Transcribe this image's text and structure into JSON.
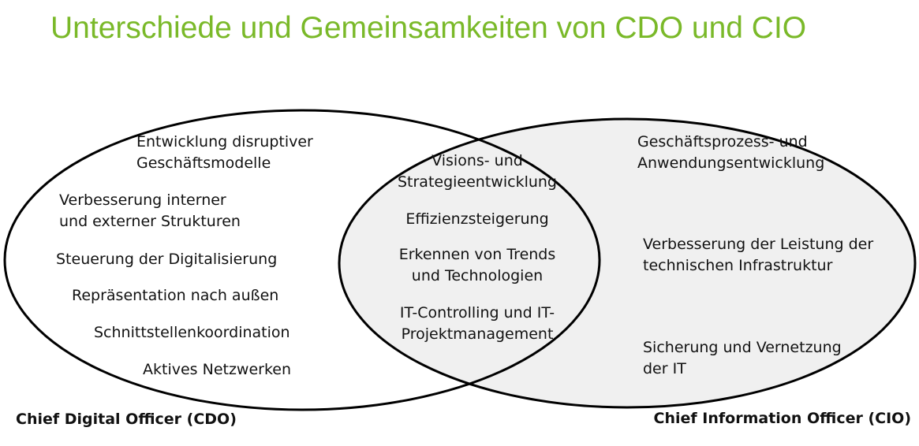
{
  "title": "Unterschiede und Gemeinsamkeiten von CDO und CIO",
  "colors": {
    "title": "#7ab929",
    "circle_fill": "#f0f0f0",
    "outline": "#000000",
    "text": "#111111"
  },
  "cdo": {
    "caption": "Chief Digital Officer (CDO)",
    "items": [
      [
        "Entwicklung disruptiver",
        "Geschäftsmodelle"
      ],
      [
        "Verbesserung interner",
        "und externer Strukturen"
      ],
      [
        "Steuerung der Digitalisierung"
      ],
      [
        "Repräsentation nach außen"
      ],
      [
        "Schnittstellenkoordination"
      ],
      [
        "Aktives Netzwerken"
      ]
    ]
  },
  "shared": {
    "items": [
      [
        "Visions- und",
        "Strategieentwicklung"
      ],
      [
        "Effizienzsteigerung"
      ],
      [
        "Erkennen von Trends",
        "und Technologien"
      ],
      [
        "IT-Controlling und IT-",
        "Projektmanagement"
      ]
    ]
  },
  "cio": {
    "caption": "Chief Information Officer (CIO)",
    "items": [
      [
        "Geschäftsprozess- und",
        "Anwendungsentwicklung"
      ],
      [
        "Verbesserung der Leistung der",
        "technischen Infrastruktur"
      ],
      [
        "Sicherung und Vernetzung",
        "der IT"
      ]
    ]
  }
}
